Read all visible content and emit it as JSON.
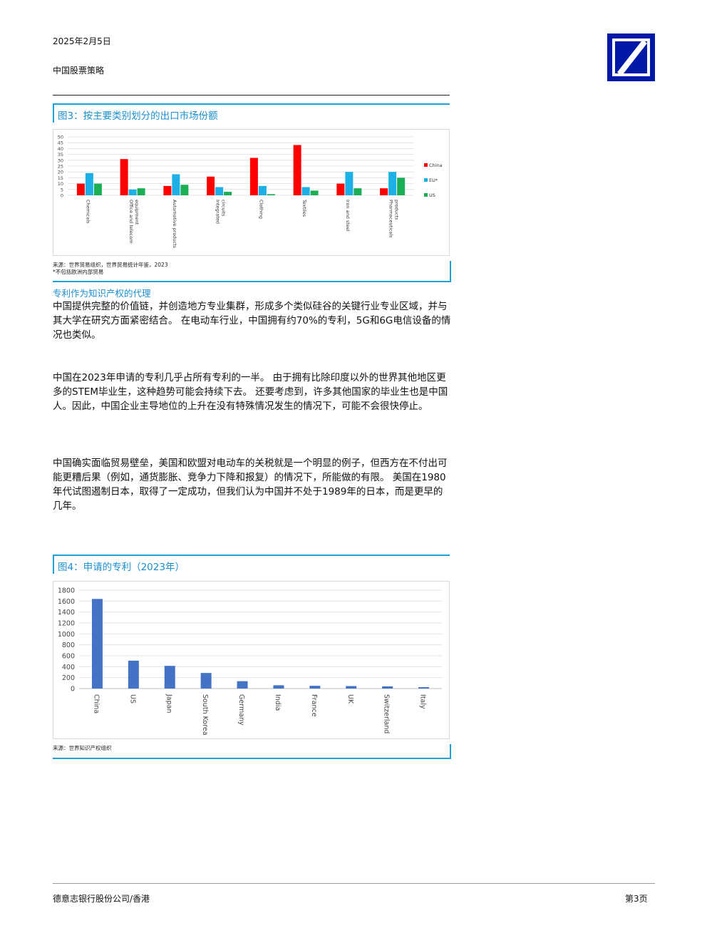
{
  "header": {
    "date": "2025年2月5日",
    "subtitle": "中国股票策略"
  },
  "figure3": {
    "title": "图3：按主要类别划分的出口市场份额",
    "source_line1": "来源：世界贸易组织，世界贸易统计年鉴，2023",
    "source_line2": "*不包括欧洲内部贸易",
    "colors": {
      "China": "#ff0000",
      "EU*": "#1cb0e6",
      "US": "#1aaf54"
    },
    "chart_data": {
      "type": "bar",
      "categories": [
        "Chemicals",
        "Office and telecom equipment",
        "Automotive products",
        "Integrated circuits",
        "Clothing",
        "Textiles",
        "Iron and steel",
        "Pharmaceuticals"
      ],
      "category_labels": [
        "Chemicals",
        "Office and telecom\nequipment",
        "Automotive products",
        "Integrated\ncircuits",
        "Clothing",
        "Textiles",
        "Iron and steel",
        "Pharmaceuticals\nproducts"
      ],
      "series": [
        {
          "name": "China",
          "values": [
            10,
            31,
            8,
            16,
            32,
            43,
            10,
            6
          ]
        },
        {
          "name": "EU*",
          "values": [
            19,
            5,
            18,
            7,
            8,
            7,
            20,
            20
          ]
        },
        {
          "name": "US",
          "values": [
            10,
            6,
            9,
            3,
            1,
            4,
            6,
            15
          ]
        }
      ],
      "yticks": [
        0,
        5,
        10,
        15,
        20,
        25,
        30,
        35,
        40,
        45,
        50
      ],
      "ylim": [
        0,
        50
      ],
      "legend": "right",
      "grid": true
    }
  },
  "section": {
    "heading": "专利作为知识产权的代理",
    "paragraphs": [
      "中国提供完整的价值链，并创造地方专业集群，形成多个类似硅谷的关键行业专业区域，并与其大学在研究方面紧密结合。 在电动车行业，中国拥有约70%的专利，5G和6G电信设备的情况也类似。",
      "中国在2023年申请的专利几乎占所有专利的一半。 由于拥有比除印度以外的世界其他地区更多的STEM毕业生，这种趋势可能会持续下去。 还要考虑到，许多其他国家的毕业生也是中国人。因此，中国企业主导地位的上升在没有特殊情况发生的情况下，可能不会很快停止。",
      "中国确实面临贸易壁垒，美国和欧盟对电动车的关税就是一个明显的例子，但西方在不付出可能更糟后果（例如，通货膨胀、竞争力下降和报复）的情况下，所能做的有限。 美国在1980年代试图遏制日本，取得了一定成功，但我们认为中国并不处于1989年的日本，而是更早的几年。"
    ]
  },
  "figure4": {
    "title": "图4：申请的专利（2023年）",
    "source": "来源：世界知识产权组织",
    "bar_color": "#4472c4",
    "chart_data": {
      "type": "bar",
      "categories": [
        "China",
        "US",
        "Japan",
        "South Korea",
        "Germany",
        "India",
        "France",
        "UK",
        "Switzerland",
        "Italy"
      ],
      "values": [
        1640,
        510,
        415,
        285,
        135,
        60,
        50,
        45,
        40,
        25
      ],
      "yticks": [
        0,
        200,
        400,
        600,
        800,
        1000,
        1200,
        1400,
        1600,
        1800
      ],
      "ylim": [
        0,
        1800
      ],
      "grid": true
    }
  },
  "footer": {
    "left": "德意志银行股份公司/香港",
    "right": "第3页"
  }
}
